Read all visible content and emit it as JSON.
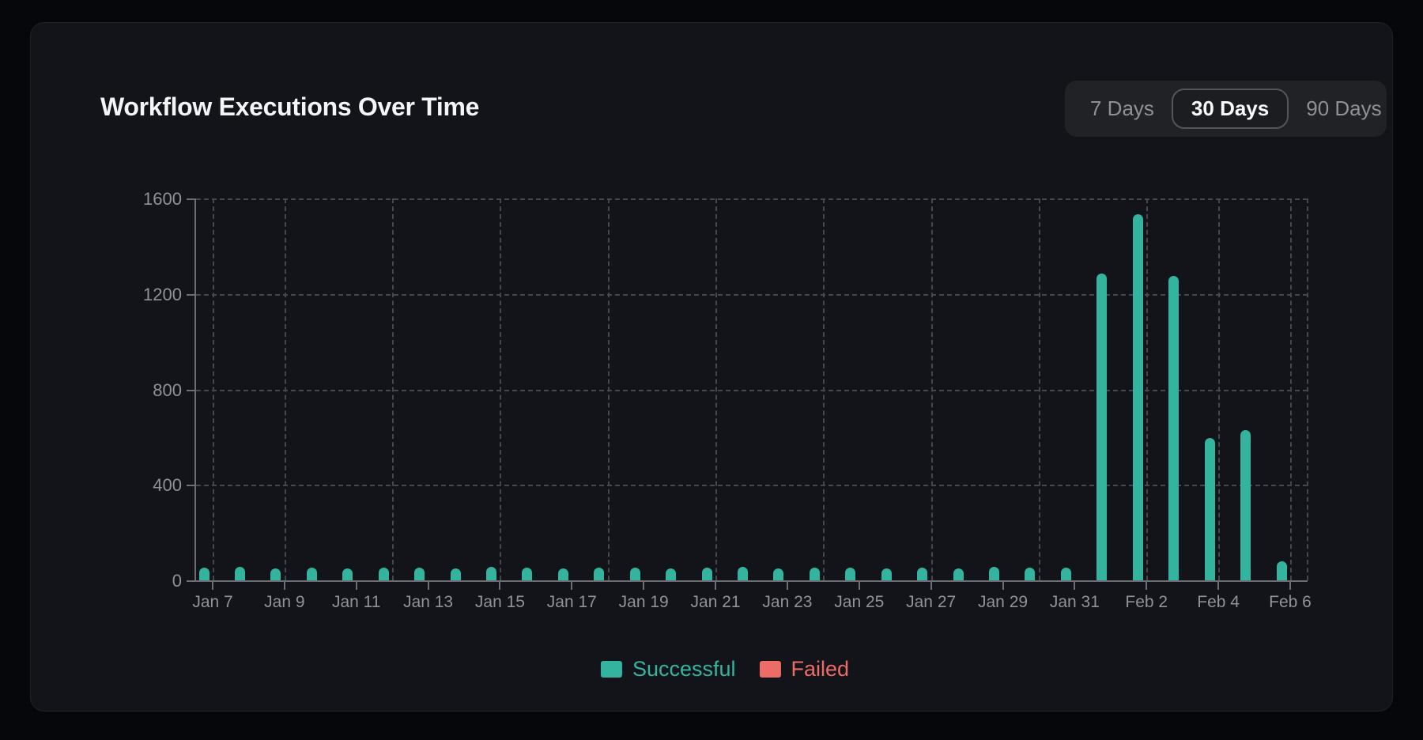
{
  "card": {
    "title": "Workflow Executions Over Time"
  },
  "time_range": {
    "options": [
      {
        "label": "7 Days",
        "selected": false
      },
      {
        "label": "30 Days",
        "selected": true
      },
      {
        "label": "90 Days",
        "selected": false
      }
    ]
  },
  "legend": {
    "items": [
      {
        "label": "Successful",
        "color": "#34b49e"
      },
      {
        "label": "Failed",
        "color": "#ed6c67"
      }
    ]
  },
  "chart_data": {
    "type": "bar",
    "title": "Workflow Executions Over Time",
    "categories": [
      "Jan 7",
      "Jan 8",
      "Jan 9",
      "Jan 10",
      "Jan 11",
      "Jan 12",
      "Jan 13",
      "Jan 14",
      "Jan 15",
      "Jan 16",
      "Jan 17",
      "Jan 18",
      "Jan 19",
      "Jan 20",
      "Jan 21",
      "Jan 22",
      "Jan 23",
      "Jan 24",
      "Jan 25",
      "Jan 26",
      "Jan 27",
      "Jan 28",
      "Jan 29",
      "Jan 30",
      "Jan 31",
      "Feb 1",
      "Feb 2",
      "Feb 3",
      "Feb 4",
      "Feb 5",
      "Feb 6"
    ],
    "series": [
      {
        "name": "Successful",
        "color": "#34b49e",
        "values": [
          52,
          55,
          50,
          53,
          51,
          54,
          52,
          50,
          55,
          53,
          51,
          54,
          52,
          50,
          53,
          55,
          51,
          52,
          54,
          50,
          53,
          51,
          55,
          52,
          53,
          1286,
          1533,
          1274,
          595,
          628,
          80
        ]
      },
      {
        "name": "Failed",
        "color": "#ed6c67",
        "values": [
          0,
          0,
          0,
          0,
          0,
          0,
          0,
          0,
          0,
          0,
          0,
          0,
          0,
          0,
          0,
          0,
          0,
          0,
          0,
          0,
          0,
          0,
          0,
          0,
          0,
          0,
          0,
          0,
          0,
          0,
          0
        ]
      }
    ],
    "ylim": [
      0,
      1600
    ],
    "yticks": [
      0,
      400,
      800,
      1200,
      1600
    ],
    "xtick_labels": [
      "Jan 7",
      "Jan 9",
      "Jan 11",
      "Jan 13",
      "Jan 15",
      "Jan 17",
      "Jan 19",
      "Jan 21",
      "Jan 23",
      "Jan 25",
      "Jan 27",
      "Jan 29",
      "Jan 31",
      "Feb 2",
      "Feb 4",
      "Feb 6"
    ],
    "x_gridline_categories": [
      "Jan 7",
      "Jan 9",
      "Jan 12",
      "Jan 15",
      "Jan 18",
      "Jan 21",
      "Jan 24",
      "Jan 27",
      "Jan 30",
      "Feb 2",
      "Feb 4",
      "Feb 6"
    ],
    "grid": "dashed",
    "legend_position": "bottom"
  },
  "colors": {
    "page_bg": "#06070a",
    "card_bg": "#121419",
    "title": "#f4f5f7",
    "axis_line": "#6b6e73",
    "grid_line": "#44474c",
    "tick_label": "#8f9296",
    "successful": "#34b49e",
    "failed": "#ed6c67",
    "selector_bg": "#202226",
    "selector_text": "#8f9195",
    "selector_selected_text": "#fafbfd",
    "selector_selected_border": "#53555a",
    "selector_selected_bg": "#1b1d21"
  }
}
